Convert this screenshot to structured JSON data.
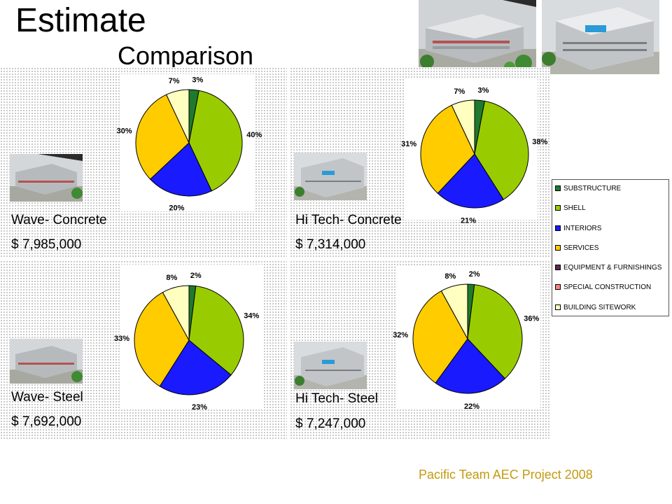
{
  "header": {
    "title": "Estimate",
    "subtitle": "Comparison"
  },
  "legend": {
    "items": [
      {
        "label": "SUBSTRUCTURE",
        "color": "#1f7a2e"
      },
      {
        "label": "SHELL",
        "color": "#99cc00"
      },
      {
        "label": "INTERIORS",
        "color": "#1a1aff"
      },
      {
        "label": "SERVICES",
        "color": "#ffcc00"
      },
      {
        "label": "EQUIPMENT & FURNISHINGS",
        "color": "#5a2a5a"
      },
      {
        "label": "SPECIAL CONSTRUCTION",
        "color": "#ff8080"
      },
      {
        "label": "BUILDING SITEWORK",
        "color": "#ffffc0"
      }
    ]
  },
  "panels": [
    {
      "name": "Wave- Concrete",
      "cost": "$ 7,985,000"
    },
    {
      "name": "Hi Tech- Concrete",
      "cost": "$ 7,314,000"
    },
    {
      "name": "Wave- Steel",
      "cost": "$ 7,692,000"
    },
    {
      "name": "Hi Tech- Steel",
      "cost": "$ 7,247,000"
    }
  ],
  "chart_data": [
    {
      "type": "pie",
      "title": "",
      "categories": [
        "SUBSTRUCTURE",
        "SHELL",
        "INTERIORS",
        "SERVICES",
        "BUILDING SITEWORK"
      ],
      "values": [
        3,
        40,
        20,
        30,
        7
      ],
      "labels": [
        "3%",
        "40%",
        "20%",
        "30%",
        "7%"
      ]
    },
    {
      "type": "pie",
      "title": "",
      "categories": [
        "SUBSTRUCTURE",
        "SHELL",
        "INTERIORS",
        "SERVICES",
        "BUILDING SITEWORK"
      ],
      "values": [
        3,
        38,
        21,
        31,
        7
      ],
      "labels": [
        "3%",
        "38%",
        "21%",
        "31%",
        "7%"
      ]
    },
    {
      "type": "pie",
      "title": "",
      "categories": [
        "SUBSTRUCTURE",
        "SHELL",
        "INTERIORS",
        "SERVICES",
        "BUILDING SITEWORK"
      ],
      "values": [
        2,
        34,
        23,
        33,
        8
      ],
      "labels": [
        "2%",
        "34%",
        "23%",
        "33%",
        "8%"
      ]
    },
    {
      "type": "pie",
      "title": "",
      "categories": [
        "SUBSTRUCTURE",
        "SHELL",
        "INTERIORS",
        "SERVICES",
        "BUILDING SITEWORK"
      ],
      "values": [
        2,
        36,
        22,
        32,
        8
      ],
      "labels": [
        "2%",
        "36%",
        "22%",
        "32%",
        "8%"
      ]
    }
  ],
  "footer": {
    "text": "Pacific Team AEC Project 2008"
  }
}
